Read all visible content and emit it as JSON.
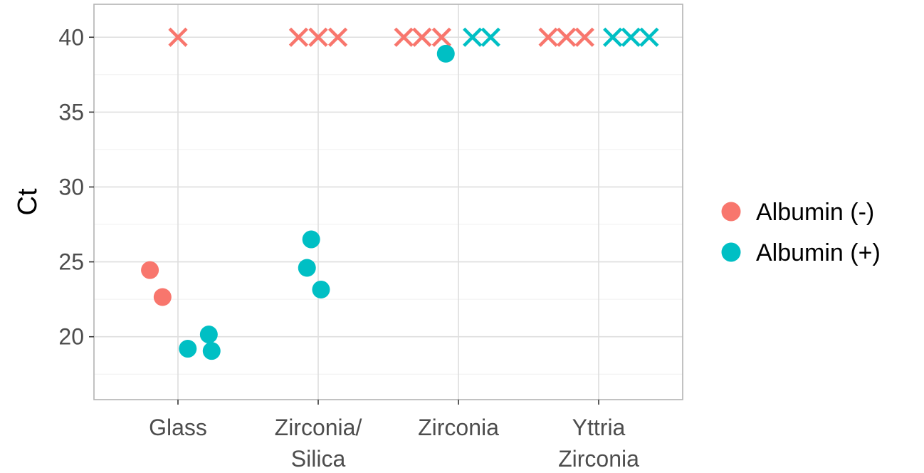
{
  "chart_data": {
    "type": "scatter",
    "title": "",
    "xlabel": "",
    "ylabel": "Ct",
    "ylim": [
      15.8,
      42.2
    ],
    "yticks": [
      20,
      25,
      30,
      35,
      40
    ],
    "grid": true,
    "legend_position": "right",
    "categories": [
      {
        "key": "glass",
        "lines": [
          "Glass"
        ]
      },
      {
        "key": "zirconia-silica",
        "lines": [
          "Zirconia/",
          "Silica"
        ]
      },
      {
        "key": "zirconia",
        "lines": [
          "Zirconia"
        ]
      },
      {
        "key": "yttria-zirconia",
        "lines": [
          "Yttria",
          "Zirconia"
        ]
      }
    ],
    "series": [
      {
        "name": "Albumin (-)",
        "color": "#F8766D",
        "points": [
          {
            "category": 0,
            "offset": -0.2,
            "y": 24.45,
            "marker": "circle"
          },
          {
            "category": 0,
            "offset": -0.11,
            "y": 22.65,
            "marker": "circle"
          },
          {
            "category": 0,
            "offset": 0.0,
            "y": 40,
            "marker": "cross"
          },
          {
            "category": 1,
            "offset": -0.14,
            "y": 40,
            "marker": "cross"
          },
          {
            "category": 1,
            "offset": 0.0,
            "y": 40,
            "marker": "cross"
          },
          {
            "category": 1,
            "offset": 0.14,
            "y": 40,
            "marker": "cross"
          },
          {
            "category": 2,
            "offset": -0.39,
            "y": 40,
            "marker": "cross"
          },
          {
            "category": 2,
            "offset": -0.26,
            "y": 40,
            "marker": "cross"
          },
          {
            "category": 2,
            "offset": -0.12,
            "y": 40,
            "marker": "cross"
          },
          {
            "category": 3,
            "offset": -0.36,
            "y": 40,
            "marker": "cross"
          },
          {
            "category": 3,
            "offset": -0.23,
            "y": 40,
            "marker": "cross"
          },
          {
            "category": 3,
            "offset": -0.1,
            "y": 40,
            "marker": "cross"
          }
        ]
      },
      {
        "name": "Albumin (+)",
        "color": "#00BFC4",
        "points": [
          {
            "category": 0,
            "offset": 0.07,
            "y": 19.2,
            "marker": "circle"
          },
          {
            "category": 0,
            "offset": 0.22,
            "y": 20.15,
            "marker": "circle"
          },
          {
            "category": 0,
            "offset": 0.24,
            "y": 19.05,
            "marker": "circle"
          },
          {
            "category": 1,
            "offset": -0.05,
            "y": 26.5,
            "marker": "circle"
          },
          {
            "category": 1,
            "offset": -0.08,
            "y": 24.6,
            "marker": "circle"
          },
          {
            "category": 1,
            "offset": 0.02,
            "y": 23.15,
            "marker": "circle"
          },
          {
            "category": 2,
            "offset": -0.09,
            "y": 38.9,
            "marker": "circle"
          },
          {
            "category": 2,
            "offset": 0.1,
            "y": 40,
            "marker": "cross"
          },
          {
            "category": 2,
            "offset": 0.23,
            "y": 40,
            "marker": "cross"
          },
          {
            "category": 3,
            "offset": 0.1,
            "y": 40,
            "marker": "cross"
          },
          {
            "category": 3,
            "offset": 0.23,
            "y": 40,
            "marker": "cross"
          },
          {
            "category": 3,
            "offset": 0.36,
            "y": 40,
            "marker": "cross"
          }
        ]
      }
    ]
  }
}
